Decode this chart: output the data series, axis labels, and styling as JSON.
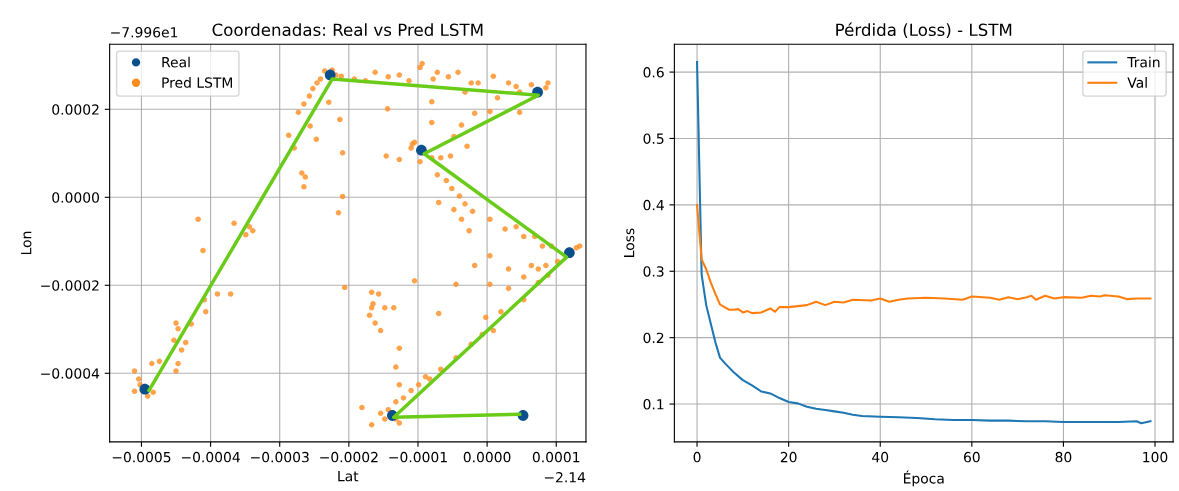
{
  "chart_data": [
    {
      "type": "scatter",
      "title": "Coordenadas: Real vs Pred LSTM",
      "xlabel": "Lat",
      "ylabel": "Lon",
      "annotations": [
        "−7.996e1",
        "−2.14"
      ],
      "xlim": [
        -0.000546,
        0.000143
      ],
      "ylim": [
        -0.000556,
        0.000348
      ],
      "xticks": [
        -0.0005,
        -0.0004,
        -0.0003,
        -0.0002,
        -0.0001,
        {
          "value": 0.0,
          "label": "0.0000"
        },
        0.0001
      ],
      "yticks": [
        {
          "value": -0.0004,
          "label": "−0.0004"
        },
        {
          "value": -0.0002,
          "label": "−0.0002"
        },
        {
          "value": 0.0,
          "label": "0.0000"
        },
        {
          "value": 0.0002,
          "label": "0.0002"
        }
      ],
      "grid": true,
      "legend": "top left",
      "series": [
        {
          "name": "Real",
          "type": "scatter",
          "marker": "circle",
          "color": "#0b4f8c",
          "x": [
            -0.000495,
            -0.000227,
            7.3e-05,
            -9.5e-05,
            0.000119,
            -0.000137,
            5.2e-05
          ],
          "values": [
            -0.000436,
            0.000278,
            0.000239,
            0.000107,
            -0.000126,
            -0.000496,
            -0.000496
          ]
        },
        {
          "name": "Pred LSTM",
          "type": "scatter",
          "marker": "circle",
          "color": "#ff8c1f",
          "x": [
            -0.000235,
            -0.000224,
            -0.000219,
            -0.000211,
            -0.000241,
            -0.000246,
            -0.000252,
            -0.000257,
            -0.000265,
            -0.000273,
            -0.000256,
            -0.000287,
            -0.000279,
            -0.000268,
            -0.000263,
            -0.000265,
            -0.000247,
            -0.000229,
            -0.000213,
            -0.000209,
            -0.000209,
            -0.000215,
            -0.000206,
            -0.000192,
            -0.000176,
            -0.000162,
            -0.000143,
            -0.000127,
            -0.000113,
            -9.4e-05,
            -9.7e-05,
            -7.8e-05,
            -7.2e-05,
            -5.6e-05,
            -4.2e-05,
            -2.3e-05,
            -1.3e-05,
            9e-06,
            3.1e-05,
            4.2e-05,
            6.4e-05,
            8.5e-05,
            8.8e-05,
            6.9e-05,
            4.7e-05,
            1.5e-05,
            4e-06,
            -1.8e-05,
            -0.000144,
            -8e-05,
            -3.2e-05,
            4.7e-05,
            -8e-05,
            -3.7e-05,
            -4.8e-05,
            -0.000108,
            -0.00011,
            -0.000105,
            -9.7e-05,
            -0.000146,
            -0.000127,
            -8e-05,
            -6.7e-05,
            -5.3e-05,
            -2.9e-05,
            -7.2e-05,
            -5.9e-05,
            -5.1e-05,
            -4e-05,
            -3.2e-05,
            -2.1e-05,
            -7e-05,
            -4.8e-05,
            -3.7e-05,
            -2.6e-05,
            4e-06,
            2.6e-05,
            4.2e-05,
            5.3e-05,
            6.9e-05,
            8e-05,
            9.3e-05,
            0.000129,
            0.000134,
            0.000102,
            8.5e-05,
            7.4e-05,
            8.8e-05,
            6.4e-05,
            5.3e-05,
            3.1e-05,
            4e-06,
            -1.8e-05,
            3.1e-05,
            5.3e-05,
            7.4e-05,
            4e-06,
            -4.5e-05,
            -0.000105,
            -2e-06,
            2e-05,
            9e-06,
            -7e-06,
            -2.3e-05,
            -4.5e-05,
            -6.7e-05,
            -8.3e-05,
            -9.9e-05,
            -0.00011,
            -0.000121,
            -0.000132,
            -0.000154,
            -0.000148,
            -0.000132,
            -0.000127,
            -0.000143,
            -8.9e-05,
            -0.000127,
            -0.000132,
            -0.000127,
            -7e-05,
            -0.000167,
            -0.000181,
            -0.000344,
            -0.000339,
            -0.000349,
            -0.000366,
            -0.000418,
            -0.000411,
            -0.000371,
            -0.00039,
            -0.000409,
            -0.000407,
            -0.00045,
            -0.000428,
            -0.000447,
            -0.000453,
            -0.000436,
            -0.000442,
            -0.000447,
            -0.00045,
            -0.000474,
            -0.000485,
            -0.00051,
            -0.000504,
            -0.000502,
            -0.00051,
            -0.000499,
            -0.000491,
            -0.000483,
            -0.000167,
            -0.000157,
            -0.000165,
            -0.000167,
            -0.00017,
            -0.000162,
            -0.000154,
            -0.000148,
            -0.000135
          ],
          "values": [
            0.000287,
            0.000289,
            0.000278,
            0.000275,
            0.000269,
            0.00026,
            0.000247,
            0.00023,
            0.000212,
            0.000193,
            0.000162,
            0.000141,
            0.000112,
            5.5e-05,
            4.6e-05,
            2.4e-05,
            0.000132,
            0.000216,
            0.000177,
            0.000101,
            2e-06,
            -3.5e-05,
            -0.000205,
            0.000269,
            0.000265,
            0.000284,
            0.000274,
            0.000278,
            0.000265,
            0.000304,
            0.000295,
            0.000269,
            0.000284,
            0.000274,
            0.000284,
            0.00026,
            0.00026,
            0.000275,
            0.00026,
            0.000252,
            0.000256,
            0.000249,
            0.00026,
            0.00023,
            0.000239,
            0.000226,
            0.000195,
            0.000191,
            0.000201,
            0.000217,
            0.000239,
            0.000193,
            0.00017,
            0.000164,
            0.000138,
            0.000121,
            0.000112,
            0.000125,
            8.1e-05,
            9.4e-05,
            8.6e-05,
            9e-05,
            9e-05,
            9.4e-05,
            0.000116,
            5.1e-05,
            3.8e-05,
            2e-05,
            3e-06,
            -1.5e-05,
            -3.2e-05,
            -1.2e-05,
            -2.8e-05,
            -5e-05,
            -7.6e-05,
            -5e-05,
            -7.2e-05,
            -6.7e-05,
            -8.9e-05,
            -8.9e-05,
            -0.000111,
            -0.000111,
            -0.000115,
            -0.000111,
            -0.000146,
            -0.000155,
            -0.000163,
            -0.000177,
            -0.000155,
            -0.000181,
            -0.000163,
            -0.000133,
            -0.000155,
            -0.000207,
            -0.000233,
            -0.000194,
            -0.000198,
            -0.000198,
            -0.00019,
            -0.000273,
            -0.00026,
            -0.000303,
            -0.000312,
            -0.000334,
            -0.000365,
            -0.000391,
            -0.000413,
            -0.000426,
            -0.000439,
            -0.000456,
            -0.000465,
            -0.000491,
            -0.000504,
            -0.000504,
            -0.000513,
            -0.000483,
            -0.000408,
            -0.000426,
            -0.000386,
            -0.000343,
            -0.000264,
            -0.000517,
            -0.000478,
            -6.7e-05,
            -7.6e-05,
            -8.5e-05,
            -5.9e-05,
            -5e-05,
            -0.000121,
            -0.00022,
            -0.00022,
            -0.000233,
            -0.00026,
            -0.000286,
            -0.000288,
            -0.000299,
            -0.000325,
            -0.00033,
            -0.000347,
            -0.000378,
            -0.000395,
            -0.000373,
            -0.000378,
            -0.000395,
            -0.000413,
            -0.000426,
            -0.000441,
            -0.000439,
            -0.000452,
            -0.000443,
            -0.000216,
            -0.00022,
            -0.000242,
            -0.000251,
            -0.000268,
            -0.000286,
            -0.000303,
            -0.000251,
            -0.000251
          ]
        },
        {
          "type": "line",
          "marker": "none",
          "color": "#6acc19",
          "x": [
            -0.000489,
            -0.000224,
            7.4e-05,
            -9.1e-05,
            0.000115,
            -0.000135,
            4.7e-05
          ],
          "values": [
            -0.000439,
            0.000269,
            0.000232,
            9.9e-05,
            -0.000136,
            -0.0005,
            -0.000493
          ]
        }
      ]
    },
    {
      "type": "line",
      "title": "Pérdida (Loss) - LSTM",
      "xlabel": "Época",
      "ylabel": "Loss",
      "xlim": [
        -4.95,
        103.95
      ],
      "ylim": [
        0.043,
        0.642
      ],
      "xticks": [
        0,
        20,
        40,
        60,
        80,
        100
      ],
      "yticks": [
        0.1,
        0.2,
        0.3,
        0.4,
        0.5,
        0.6
      ],
      "grid": true,
      "legend": "top right",
      "marker": "none",
      "line_style": "solid",
      "series": [
        {
          "name": "Train",
          "color": "#1f77b4",
          "x": [
            0,
            1,
            2,
            3,
            4,
            5,
            6,
            8,
            10,
            12,
            14,
            16,
            18,
            20,
            22,
            24,
            26,
            28,
            30,
            32,
            34,
            36,
            40,
            44,
            48,
            52,
            56,
            60,
            64,
            68,
            72,
            76,
            80,
            84,
            88,
            92,
            96,
            97,
            99
          ],
          "values": [
            0.615,
            0.295,
            0.249,
            0.221,
            0.193,
            0.17,
            0.162,
            0.148,
            0.136,
            0.128,
            0.119,
            0.116,
            0.109,
            0.103,
            0.101,
            0.096,
            0.093,
            0.091,
            0.089,
            0.087,
            0.084,
            0.082,
            0.081,
            0.08,
            0.079,
            0.077,
            0.076,
            0.076,
            0.075,
            0.075,
            0.074,
            0.074,
            0.073,
            0.073,
            0.073,
            0.073,
            0.074,
            0.071,
            0.074
          ]
        },
        {
          "name": "Val",
          "color": "#ff7f0e",
          "x": [
            0,
            1,
            2,
            3,
            4,
            5,
            6,
            7,
            8,
            9,
            10,
            11,
            12,
            14,
            16,
            17,
            18,
            20,
            24,
            26,
            28,
            30,
            32,
            34,
            38,
            40,
            42,
            44,
            46,
            50,
            54,
            58,
            60,
            64,
            66,
            68,
            70,
            72,
            73,
            74,
            76,
            78,
            80,
            84,
            86,
            88,
            89,
            92,
            94,
            96,
            99
          ],
          "values": [
            0.4,
            0.318,
            0.303,
            0.283,
            0.266,
            0.25,
            0.246,
            0.242,
            0.242,
            0.243,
            0.238,
            0.24,
            0.237,
            0.238,
            0.244,
            0.239,
            0.246,
            0.246,
            0.249,
            0.254,
            0.249,
            0.254,
            0.253,
            0.257,
            0.256,
            0.259,
            0.254,
            0.257,
            0.259,
            0.26,
            0.259,
            0.257,
            0.262,
            0.26,
            0.257,
            0.261,
            0.258,
            0.261,
            0.263,
            0.257,
            0.263,
            0.259,
            0.261,
            0.26,
            0.263,
            0.262,
            0.264,
            0.262,
            0.258,
            0.259,
            0.259
          ]
        }
      ]
    }
  ]
}
